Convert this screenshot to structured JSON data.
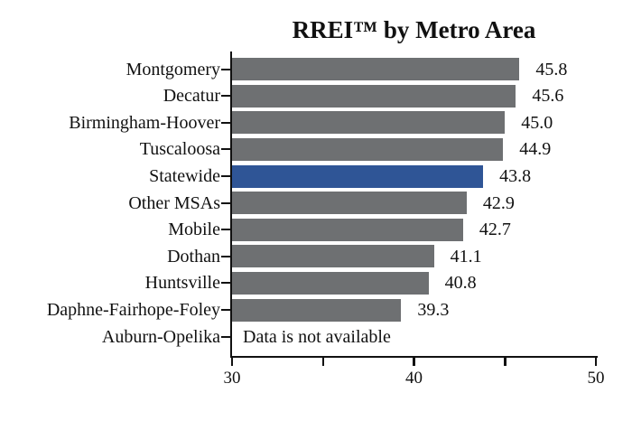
{
  "title": "RREI™ by Metro Area",
  "chart_data": {
    "type": "bar",
    "orientation": "horizontal",
    "title": "RREI™ by Metro Area",
    "categories": [
      "Montgomery",
      "Decatur",
      "Birmingham-Hoover",
      "Tuscaloosa",
      "Statewide",
      "Other MSAs",
      "Mobile",
      "Dothan",
      "Huntsville",
      "Daphne-Fairhope-Foley",
      "Auburn-Opelika"
    ],
    "values": [
      45.8,
      45.6,
      45.0,
      44.9,
      43.8,
      42.9,
      42.7,
      41.1,
      40.8,
      39.3,
      null
    ],
    "value_labels": [
      "45.8",
      "45.6",
      "45.0",
      "44.9",
      "43.8",
      "42.9",
      "42.7",
      "41.1",
      "40.8",
      "39.3",
      "Data is not available"
    ],
    "highlight_index": 4,
    "highlight_category": "Statewide",
    "no_data_note": "Data is not available",
    "xlim": [
      30,
      50
    ],
    "xticks": [
      30,
      35,
      40,
      45,
      50
    ],
    "xtick_labels": [
      "30",
      "",
      "40",
      "",
      "50"
    ],
    "grid": false,
    "legend": false,
    "colors": {
      "bar": "#6E7072",
      "highlight": "#2F5596",
      "axis": "#111111",
      "text": "#111111",
      "background": "#FFFFFF"
    }
  }
}
